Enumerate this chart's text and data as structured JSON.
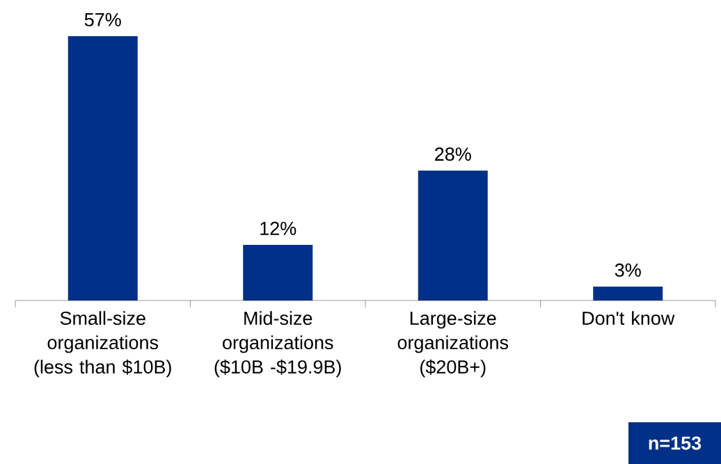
{
  "chart_data": {
    "type": "bar",
    "categories": [
      "Small-size organizations (less than $10B)",
      "Mid-size organizations ($10B -$19.9B)",
      "Large-size organizations ($20B+)",
      "Don't know"
    ],
    "values": [
      57,
      12,
      28,
      3
    ],
    "color": "#003087",
    "value_labels": [
      "57%",
      "12%",
      "28%",
      "3%"
    ],
    "annotations": [
      "n=153"
    ]
  }
}
